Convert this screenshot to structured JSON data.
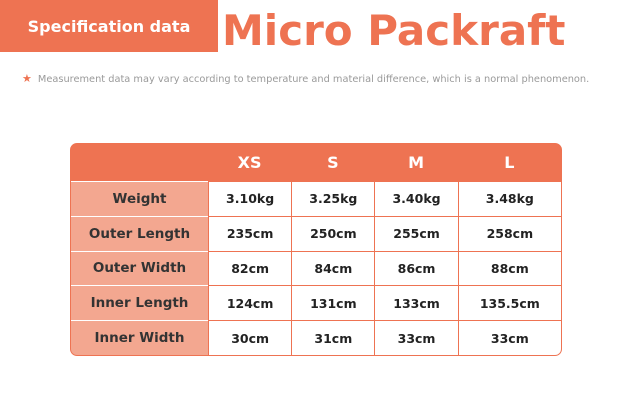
{
  "badge": {
    "label": "Specification data"
  },
  "title": "Micro Packraft",
  "note": "Measurement data may vary according to temperature and material difference, which is a normal phenomenon.",
  "table": {
    "sizes": [
      "XS",
      "S",
      "M",
      "L"
    ],
    "rows": [
      {
        "label": "Weight",
        "values": [
          "3.10kg",
          "3.25kg",
          "3.40kg",
          "3.48kg"
        ]
      },
      {
        "label": "Outer Length",
        "values": [
          "235cm",
          "250cm",
          "255cm",
          "258cm"
        ]
      },
      {
        "label": "Outer Width",
        "values": [
          "82cm",
          "84cm",
          "86cm",
          "88cm"
        ]
      },
      {
        "label": "Inner Length",
        "values": [
          "124cm",
          "131cm",
          "133cm",
          "135.5cm"
        ]
      },
      {
        "label": "Inner Width",
        "values": [
          "30cm",
          "31cm",
          "33cm",
          "33cm"
        ]
      }
    ]
  },
  "colors": {
    "accent": "#ee7352",
    "row_header": "#f3a790"
  }
}
